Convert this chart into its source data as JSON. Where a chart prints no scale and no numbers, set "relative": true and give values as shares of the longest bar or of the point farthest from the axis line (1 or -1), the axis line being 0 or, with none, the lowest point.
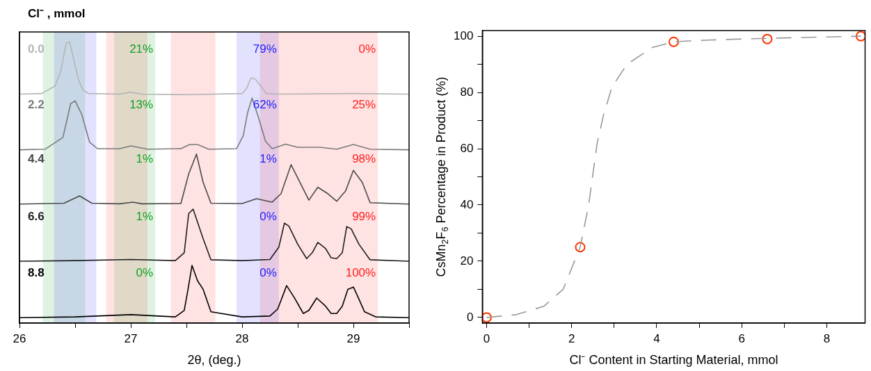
{
  "chart_data": [
    {
      "type": "line",
      "relative": true,
      "legend_title": "Cl⁻ , mmol",
      "xlabel": "2θ, (deg.)",
      "xlim": [
        26,
        29.5
      ],
      "xticks": [
        26,
        {
          "value": 26.5,
          "label": null
        },
        27,
        {
          "value": 27.5,
          "label": null
        },
        28,
        {
          "value": 28.5,
          "label": null
        },
        29,
        {
          "value": 29.5,
          "label": null
        }
      ],
      "tick_labels": "x",
      "bands": [
        {
          "axis": "x",
          "from": 26.21,
          "to": 26.59,
          "color": "#10a020"
        },
        {
          "axis": "x",
          "from": 26.31,
          "to": 26.69,
          "color": "#2020ff"
        },
        {
          "axis": "x",
          "from": 26.78,
          "to": 27.15,
          "color": "#ff2020"
        },
        {
          "axis": "x",
          "from": 26.85,
          "to": 27.22,
          "color": "#10a020"
        },
        {
          "axis": "x",
          "from": 27.36,
          "to": 27.76,
          "color": "#ff2020"
        },
        {
          "axis": "x",
          "from": 27.95,
          "to": 28.33,
          "color": "#2020ff"
        },
        {
          "axis": "x",
          "from": 28.16,
          "to": 29.22,
          "color": "#ff2020"
        }
      ],
      "annotations": [
        "21%",
        "79%",
        "0%",
        "13%",
        "62%",
        "25%",
        "1%",
        "1%",
        "98%",
        "1%",
        "0%",
        "99%",
        "0%",
        "0%",
        "100%"
      ],
      "series": [
        {
          "name": "0.0",
          "color": "#b4b4b4",
          "x": [
            26.0,
            26.2,
            26.32,
            26.37,
            26.42,
            26.45,
            26.53,
            26.57,
            26.62,
            26.9,
            27.0,
            27.1,
            27.5,
            28.0,
            28.04,
            28.08,
            28.12,
            28.22,
            28.3,
            29.0,
            29.5
          ],
          "values": [
            0.814,
            0.816,
            0.843,
            0.894,
            0.995,
            1.0,
            0.865,
            0.829,
            0.816,
            0.814,
            0.821,
            0.814,
            0.812,
            0.816,
            0.833,
            0.872,
            0.867,
            0.816,
            0.814,
            0.816,
            0.814
          ]
        },
        {
          "name": "2.2",
          "color": "#7a7a7a",
          "x": [
            26.0,
            26.23,
            26.34,
            26.39,
            26.46,
            26.5,
            26.56,
            26.63,
            26.7,
            26.9,
            27.0,
            27.15,
            27.45,
            27.53,
            27.6,
            27.7,
            27.95,
            28.01,
            28.05,
            28.09,
            28.14,
            28.21,
            28.27,
            28.39,
            28.5,
            28.7,
            28.85,
            29.0,
            29.15,
            29.5
          ],
          "values": [
            0.616,
            0.618,
            0.647,
            0.66,
            0.78,
            0.79,
            0.741,
            0.643,
            0.62,
            0.62,
            0.63,
            0.618,
            0.62,
            0.635,
            0.635,
            0.618,
            0.62,
            0.666,
            0.749,
            0.8,
            0.74,
            0.647,
            0.62,
            0.636,
            0.625,
            0.625,
            0.618,
            0.635,
            0.618,
            0.616
          ]
        },
        {
          "name": "4.4",
          "color": "#4a4a4a",
          "x": [
            26.0,
            26.4,
            26.54,
            26.65,
            26.9,
            27.02,
            27.1,
            27.45,
            27.52,
            27.59,
            27.65,
            27.72,
            28.0,
            28.13,
            28.27,
            28.35,
            28.44,
            28.52,
            28.6,
            28.68,
            28.77,
            28.85,
            28.93,
            29.0,
            29.08,
            29.15,
            29.5
          ],
          "values": [
            0.423,
            0.426,
            0.452,
            0.426,
            0.424,
            0.43,
            0.424,
            0.425,
            0.53,
            0.601,
            0.5,
            0.426,
            0.425,
            0.442,
            0.43,
            0.46,
            0.563,
            0.5,
            0.437,
            0.483,
            0.46,
            0.433,
            0.47,
            0.543,
            0.5,
            0.428,
            0.423
          ]
        },
        {
          "name": "6.6",
          "color": "#1e1e1e",
          "x": [
            26.0,
            26.5,
            27.0,
            27.4,
            27.48,
            27.52,
            27.56,
            27.65,
            27.72,
            28.0,
            28.25,
            28.33,
            28.38,
            28.42,
            28.5,
            28.58,
            28.63,
            28.68,
            28.75,
            28.8,
            28.85,
            28.9,
            28.94,
            28.98,
            29.05,
            29.15,
            29.5
          ],
          "values": [
            0.22,
            0.222,
            0.226,
            0.222,
            0.25,
            0.389,
            0.405,
            0.3,
            0.225,
            0.222,
            0.226,
            0.27,
            0.355,
            0.345,
            0.28,
            0.229,
            0.25,
            0.287,
            0.265,
            0.232,
            0.229,
            0.25,
            0.343,
            0.335,
            0.28,
            0.225,
            0.22
          ]
        },
        {
          "name": "8.8",
          "color": "#000000",
          "x": [
            26.0,
            26.5,
            27.0,
            27.4,
            27.48,
            27.51,
            27.55,
            27.6,
            27.65,
            27.72,
            28.0,
            28.25,
            28.32,
            28.4,
            28.47,
            28.55,
            28.6,
            28.67,
            28.75,
            28.8,
            28.85,
            28.9,
            28.95,
            29.0,
            29.05,
            29.1,
            29.2,
            29.5
          ],
          "values": [
            0.019,
            0.022,
            0.03,
            0.022,
            0.045,
            0.11,
            0.205,
            0.15,
            0.12,
            0.04,
            0.022,
            0.025,
            0.05,
            0.133,
            0.09,
            0.034,
            0.045,
            0.089,
            0.06,
            0.034,
            0.034,
            0.06,
            0.12,
            0.128,
            0.085,
            0.04,
            0.022,
            0.019
          ]
        }
      ]
    },
    {
      "type": "scatter",
      "marker": "circle",
      "xlabel": "Cl⁻ Content in Starting Material, mmol",
      "ylabel": "CsMn$_{2}$F$_{6}$ Percentage in Product (%)",
      "xlim": [
        -0.1,
        8.9
      ],
      "ylim": [
        -2,
        102
      ],
      "xticks": [
        0,
        {
          "value": 1,
          "label": null
        },
        2,
        {
          "value": 3,
          "label": null
        },
        4,
        {
          "value": 5,
          "label": null
        },
        6,
        {
          "value": 7,
          "label": null
        },
        8
      ],
      "yticks": [
        0,
        {
          "value": 10,
          "label": null
        },
        20,
        {
          "value": 30,
          "label": null
        },
        40,
        {
          "value": 50,
          "label": null
        },
        60,
        {
          "value": 70,
          "label": null
        },
        80,
        {
          "value": 90,
          "label": null
        },
        100
      ],
      "series": [
        {
          "type": "line",
          "marker": "none",
          "line_style": "dashed",
          "color": "#999999",
          "x": [
            0,
            0.7,
            1.35,
            1.8,
            2.2,
            2.4,
            2.6,
            2.75,
            2.95,
            3.3,
            3.9,
            4.4,
            5.0,
            6.0,
            7.3,
            8.8
          ],
          "values": [
            0,
            1,
            4,
            10,
            25,
            40,
            62,
            72,
            82,
            90,
            96,
            98,
            98.5,
            99,
            99.5,
            100
          ]
        },
        {
          "color": "#ff3300",
          "x": [
            0,
            2.2,
            4.4,
            6.6,
            8.8
          ],
          "values": [
            0,
            25,
            98,
            99,
            100
          ]
        }
      ]
    }
  ]
}
